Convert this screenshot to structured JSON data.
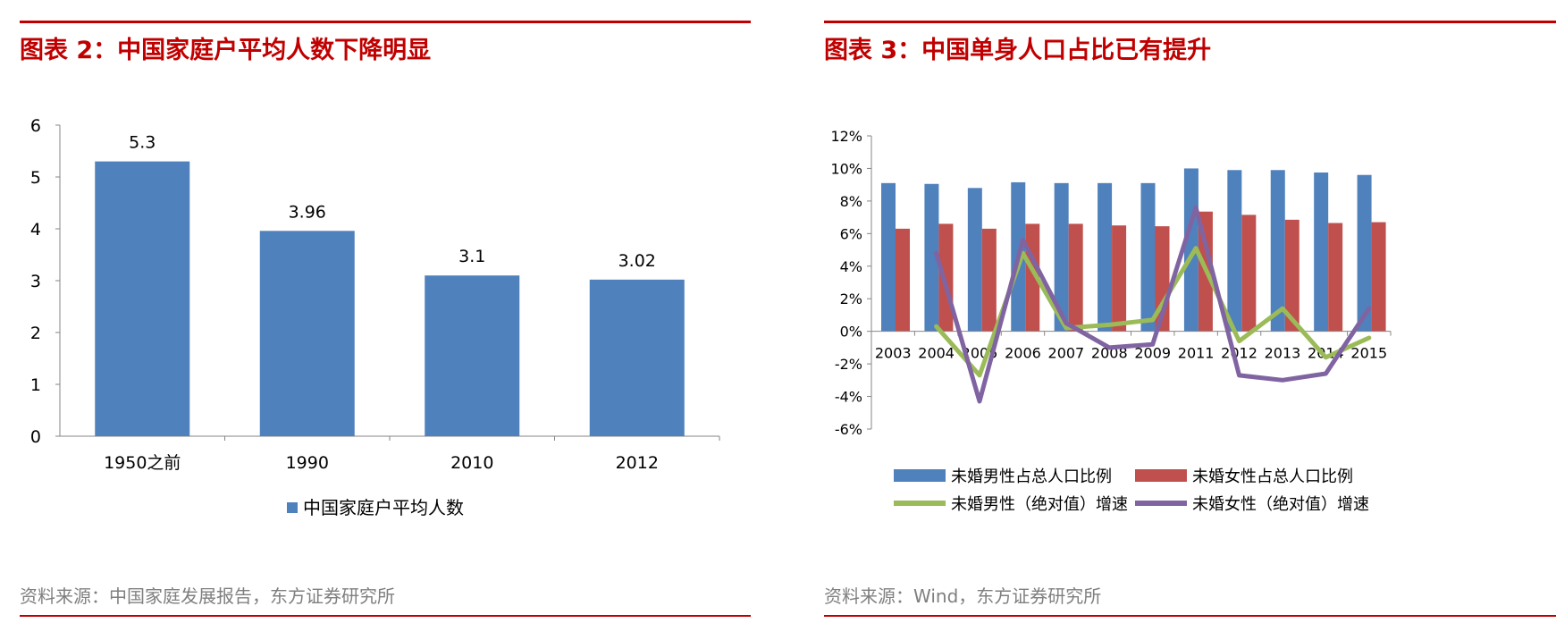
{
  "left": {
    "title": "图表 2：中国家庭户平均人数下降明显",
    "source": "资料来源：中国家庭发展报告，东方证券研究所"
  },
  "right": {
    "title": "图表 3：中国单身人口占比已有提升",
    "source": "资料来源：Wind，东方证券研究所"
  },
  "colors": {
    "accent_red": "#c00000",
    "bar_blue": "#4f81bd",
    "bar_red": "#c0504d",
    "line_green": "#9bbb59",
    "line_purple": "#8064a2",
    "axis": "#868686",
    "source_gray": "#7f7f7f"
  },
  "chart_data": [
    {
      "type": "bar",
      "categories": [
        "1950之前",
        "1990",
        "2010",
        "2012"
      ],
      "values": [
        5.3,
        3.96,
        3.1,
        3.02
      ],
      "data_labels": [
        "5.3",
        "3.96",
        "3.1",
        "3.02"
      ],
      "series_name": "中国家庭户平均人数",
      "ylim": [
        0,
        6
      ],
      "yticks": [
        "0",
        "1",
        "2",
        "3",
        "4",
        "5",
        "6"
      ],
      "legend_position": "bottom"
    },
    {
      "type": "bar+line",
      "categories": [
        "2003",
        "2004",
        "2005",
        "2006",
        "2007",
        "2008",
        "2009",
        "2011",
        "2012",
        "2013",
        "2014",
        "2015"
      ],
      "ylim": [
        -6,
        12
      ],
      "yticks": [
        "12%",
        "10%",
        "8%",
        "6%",
        "4%",
        "2%",
        "0%",
        "-2%",
        "-4%",
        "-6%"
      ],
      "ytick_values": [
        12,
        10,
        8,
        6,
        4,
        2,
        0,
        -2,
        -4,
        -6
      ],
      "bar_series": [
        {
          "name": "未婚男性占总人口比例",
          "values": [
            9.1,
            9.05,
            8.8,
            9.15,
            9.1,
            9.1,
            9.1,
            10.0,
            9.9,
            9.9,
            9.75,
            9.6
          ]
        },
        {
          "name": "未婚女性占总人口比例",
          "values": [
            6.3,
            6.6,
            6.3,
            6.6,
            6.6,
            6.5,
            6.45,
            7.35,
            7.15,
            6.85,
            6.65,
            6.7
          ]
        }
      ],
      "line_series": [
        {
          "name": "未婚男性（绝对值）增速",
          "values": [
            null,
            0.3,
            -2.7,
            4.8,
            0.2,
            0.4,
            0.7,
            5.1,
            -0.6,
            1.4,
            -1.6,
            -0.4
          ]
        },
        {
          "name": "未婚女性（绝对值）增速",
          "values": [
            null,
            4.8,
            -4.3,
            5.6,
            0.5,
            -1.0,
            -0.8,
            7.6,
            -2.7,
            -3.0,
            -2.6,
            1.4
          ]
        }
      ],
      "legend_position": "bottom"
    }
  ]
}
